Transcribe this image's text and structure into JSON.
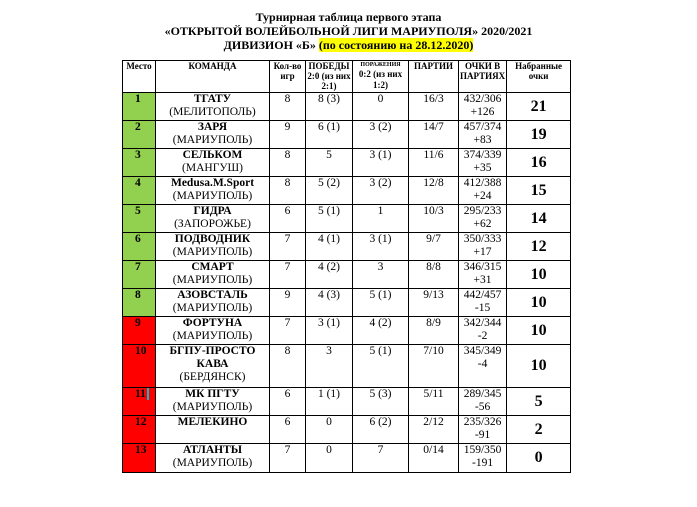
{
  "title": {
    "line1": "Турнирная таблица первого этапа",
    "line2": "«ОТКРЫТОЙ ВОЛЕЙБОЛЬНОЙ  ЛИГИ МАРИУПОЛЯ» 2020/2021",
    "line3": "ДИВИЗИОН  «Б»",
    "line3_highlight": "(по состоянию на 28.12.2020)"
  },
  "headers": {
    "place": "Место",
    "team": "КОМАНДА",
    "games": "Кол-во игр",
    "wins": "ПОБЕДЫ 2:0 (из них 2:1)",
    "losses_small": "ПОРАЖЕНИЯ",
    "losses": "0:2 (из них 1:2)",
    "sets": "ПАРТИИ",
    "points_in_sets": "ОЧКИ В ПАРТИЯХ",
    "points": "Набранные очки"
  },
  "colors": {
    "promotion": "#92d050",
    "relegation": "#ff0000",
    "highlight": "#ffff00"
  },
  "rows": [
    {
      "place": "1",
      "team": "ТГАТУ",
      "city": "(МЕЛИТОПОЛЬ)",
      "games": "8",
      "wins": "8 (3)",
      "losses": "0",
      "sets": "16/3",
      "score": "432/306",
      "diff": "+126",
      "points": "21",
      "zone": "promotion"
    },
    {
      "place": "2",
      "team": "ЗАРЯ",
      "city": "(МАРИУПОЛЬ)",
      "games": "9",
      "wins": "6 (1)",
      "losses": "3 (2)",
      "sets": "14/7",
      "score": "457/374",
      "diff": "+83",
      "points": "19",
      "zone": "promotion"
    },
    {
      "place": "3",
      "team": "СЕЛЬКОМ",
      "city": "(МАНГУШ)",
      "games": "8",
      "wins": "5",
      "losses": "3 (1)",
      "sets": "11/6",
      "score": "374/339",
      "diff": "+35",
      "points": "16",
      "zone": "promotion"
    },
    {
      "place": "4",
      "team": "Medusa.M.Sport",
      "city": "(МАРИУПОЛЬ)",
      "games": "8",
      "wins": "5 (2)",
      "losses": "3 (2)",
      "sets": "12/8",
      "score": "412/388",
      "diff": "+24",
      "points": "15",
      "zone": "promotion"
    },
    {
      "place": "5",
      "team": "ГИДРА",
      "city": "(ЗАПОРОЖЬЕ)",
      "games": "6",
      "wins": "5 (1)",
      "losses": "1",
      "sets": "10/3",
      "score": "295/233",
      "diff": "+62",
      "points": "14",
      "zone": "promotion"
    },
    {
      "place": "6",
      "team": "ПОДВОДНИК",
      "city": "(МАРИУПОЛЬ)",
      "games": "7",
      "wins": "4 (1)",
      "losses": "3 (1)",
      "sets": "9/7",
      "score": "350/333",
      "diff": "+17",
      "points": "12",
      "zone": "promotion"
    },
    {
      "place": "7",
      "team": "СМАРТ",
      "city": "(МАРИУПОЛЬ)",
      "games": "7",
      "wins": "4 (2)",
      "losses": "3",
      "sets": "8/8",
      "score": "346/315",
      "diff": "+31",
      "points": "10",
      "zone": "promotion"
    },
    {
      "place": "8",
      "team": "АЗОВСТАЛЬ",
      "city": "(МАРИУПОЛЬ)",
      "games": "9",
      "wins": "4 (3)",
      "losses": "5 (1)",
      "sets": "9/13",
      "score": "442/457",
      "diff": "-15",
      "points": "10",
      "zone": "promotion"
    },
    {
      "place": "9",
      "team": "ФОРТУНА",
      "city": "(МАРИУПОЛЬ)",
      "games": "7",
      "wins": "3 (1)",
      "losses": "4 (2)",
      "sets": "8/9",
      "score": "342/344",
      "diff": "-2",
      "points": "10",
      "zone": "relegation"
    },
    {
      "place": "10",
      "team": "БГПУ-ПРОСТО КАВА",
      "city": "(БЕРДЯНСК)",
      "games": "8",
      "wins": "3",
      "losses": "5 (1)",
      "sets": "7/10",
      "score": "345/349",
      "diff": "-4",
      "points": "10",
      "zone": "relegation"
    },
    {
      "place": "11",
      "team": "МК ПГТУ",
      "city": "(МАРИУПОЛЬ)",
      "games": "6",
      "wins": "1 (1)",
      "losses": "5 (3)",
      "sets": "5/11",
      "score": "289/345",
      "diff": "-56",
      "points": "5",
      "zone": "relegation"
    },
    {
      "place": "12",
      "team": "МЕЛЕКИНО",
      "city": "",
      "games": "6",
      "wins": "0",
      "losses": "6 (2)",
      "sets": "2/12",
      "score": "235/326",
      "diff": "-91",
      "points": "2",
      "zone": "relegation"
    },
    {
      "place": "13",
      "team": "АТЛАНТЫ",
      "city": "(МАРИУПОЛЬ)",
      "games": "7",
      "wins": "0",
      "losses": "7",
      "sets": "0/14",
      "score": "159/350",
      "diff": "-191",
      "points": "0",
      "zone": "relegation"
    }
  ]
}
